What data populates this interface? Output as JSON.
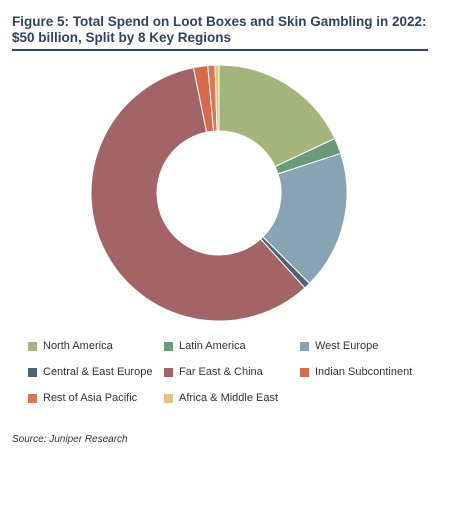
{
  "title": "Figure 5: Total Spend on Loot Boxes and Skin Gambling in 2022: $50 billion, Split by 8 Key Regions",
  "source": "Source: Juniper Research",
  "chart_data": {
    "type": "pie",
    "style": "donut",
    "title": "Figure 5: Total Spend on Loot Boxes and Skin Gambling in 2022: $50 billion, Split by 8 Key Regions",
    "categories": [
      "North America",
      "Latin America",
      "West Europe",
      "Central & East Europe",
      "Far East & China",
      "Indian Subcontinent",
      "Rest of Asia Pacific",
      "Africa & Middle East"
    ],
    "values": [
      18.0,
      2.0,
      17.5,
      0.8,
      58.5,
      1.8,
      0.9,
      0.5
    ],
    "colors": [
      "#a3b57a",
      "#6a9a78",
      "#87a4b5",
      "#4d6275",
      "#a26466",
      "#d66a4c",
      "#d7775a",
      "#e2c47e"
    ],
    "legend_position": "bottom"
  }
}
